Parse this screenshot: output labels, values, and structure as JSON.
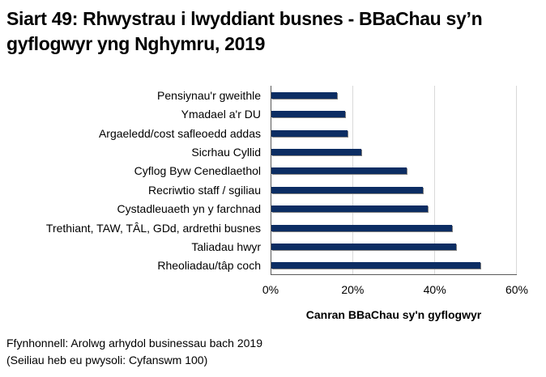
{
  "title": "Siart 49: Rhwystrau i lwyddiant busnes - BBaChau sy’n gyflogwyr yng Nghymru, 2019",
  "chart_data": {
    "type": "bar",
    "orientation": "horizontal",
    "title": "Siart 49: Rhwystrau i lwyddiant busnes - BBaChau sy’n gyflogwyr yng Nghymru, 2019",
    "xlabel": "Canran BBaChau sy'n gyflogwyr",
    "ylabel": "",
    "xlim": [
      0,
      60
    ],
    "xticks": [
      "0%",
      "20%",
      "40%",
      "60%"
    ],
    "grid": "vertical",
    "legend": "none",
    "bar_color": "#0c2d63",
    "categories": [
      "Pensiynau'r gweithle",
      "Ymadael a'r DU",
      "Argaeledd/cost safleoedd addas",
      "Sicrhau Cyllid",
      "Cyflog Byw Cenedlaethol",
      "Recriwtio staff / sgiliau",
      "Cystadleuaeth yn y farchnad",
      "Trethiant, TAW, TÂL, GDd, ardrethi busnes",
      "Taliadau hwyr",
      "Rheoliadau/tâp coch"
    ],
    "values": [
      16,
      18,
      18.5,
      22,
      33,
      37,
      38,
      44,
      45,
      51
    ]
  },
  "footnotes": {
    "source": "Ffynhonnell: Arolwg arhydol businessau bach 2019",
    "base": "(Seiliau heb eu pwysoli: Cyfanswm 100)"
  }
}
